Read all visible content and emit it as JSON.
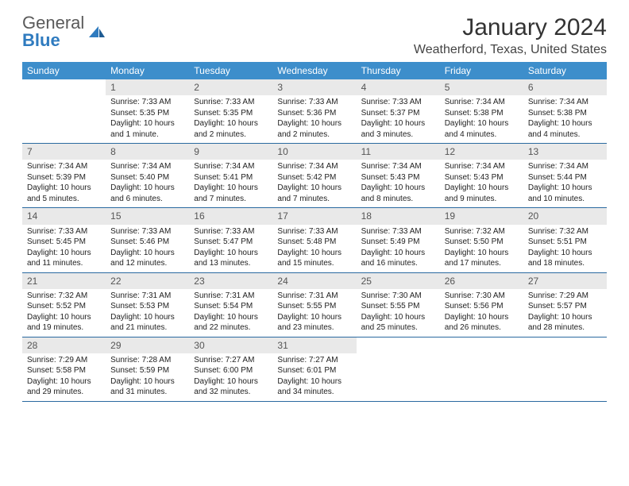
{
  "brand": {
    "line1": "General",
    "line2": "Blue"
  },
  "header": {
    "month_title": "January 2024",
    "location": "Weatherford, Texas, United States"
  },
  "colors": {
    "header_bg": "#3d8ecb",
    "header_text": "#ffffff",
    "daynum_bg": "#e9e9e9",
    "rule": "#2a6aa0",
    "brand_gray": "#5a5a5a",
    "brand_blue": "#2f7bbf",
    "page_bg": "#ffffff",
    "body_text": "#222222"
  },
  "fonts": {
    "month_title_pt": 30,
    "location_pt": 16,
    "weekday_pt": 12,
    "daynum_pt": 12,
    "body_pt": 10
  },
  "weekdays": [
    "Sunday",
    "Monday",
    "Tuesday",
    "Wednesday",
    "Thursday",
    "Friday",
    "Saturday"
  ],
  "weeks": [
    [
      null,
      {
        "n": "1",
        "sr": "Sunrise: 7:33 AM",
        "ss": "Sunset: 5:35 PM",
        "d1": "Daylight: 10 hours",
        "d2": "and 1 minute."
      },
      {
        "n": "2",
        "sr": "Sunrise: 7:33 AM",
        "ss": "Sunset: 5:35 PM",
        "d1": "Daylight: 10 hours",
        "d2": "and 2 minutes."
      },
      {
        "n": "3",
        "sr": "Sunrise: 7:33 AM",
        "ss": "Sunset: 5:36 PM",
        "d1": "Daylight: 10 hours",
        "d2": "and 2 minutes."
      },
      {
        "n": "4",
        "sr": "Sunrise: 7:33 AM",
        "ss": "Sunset: 5:37 PM",
        "d1": "Daylight: 10 hours",
        "d2": "and 3 minutes."
      },
      {
        "n": "5",
        "sr": "Sunrise: 7:34 AM",
        "ss": "Sunset: 5:38 PM",
        "d1": "Daylight: 10 hours",
        "d2": "and 4 minutes."
      },
      {
        "n": "6",
        "sr": "Sunrise: 7:34 AM",
        "ss": "Sunset: 5:38 PM",
        "d1": "Daylight: 10 hours",
        "d2": "and 4 minutes."
      }
    ],
    [
      {
        "n": "7",
        "sr": "Sunrise: 7:34 AM",
        "ss": "Sunset: 5:39 PM",
        "d1": "Daylight: 10 hours",
        "d2": "and 5 minutes."
      },
      {
        "n": "8",
        "sr": "Sunrise: 7:34 AM",
        "ss": "Sunset: 5:40 PM",
        "d1": "Daylight: 10 hours",
        "d2": "and 6 minutes."
      },
      {
        "n": "9",
        "sr": "Sunrise: 7:34 AM",
        "ss": "Sunset: 5:41 PM",
        "d1": "Daylight: 10 hours",
        "d2": "and 7 minutes."
      },
      {
        "n": "10",
        "sr": "Sunrise: 7:34 AM",
        "ss": "Sunset: 5:42 PM",
        "d1": "Daylight: 10 hours",
        "d2": "and 7 minutes."
      },
      {
        "n": "11",
        "sr": "Sunrise: 7:34 AM",
        "ss": "Sunset: 5:43 PM",
        "d1": "Daylight: 10 hours",
        "d2": "and 8 minutes."
      },
      {
        "n": "12",
        "sr": "Sunrise: 7:34 AM",
        "ss": "Sunset: 5:43 PM",
        "d1": "Daylight: 10 hours",
        "d2": "and 9 minutes."
      },
      {
        "n": "13",
        "sr": "Sunrise: 7:34 AM",
        "ss": "Sunset: 5:44 PM",
        "d1": "Daylight: 10 hours",
        "d2": "and 10 minutes."
      }
    ],
    [
      {
        "n": "14",
        "sr": "Sunrise: 7:33 AM",
        "ss": "Sunset: 5:45 PM",
        "d1": "Daylight: 10 hours",
        "d2": "and 11 minutes."
      },
      {
        "n": "15",
        "sr": "Sunrise: 7:33 AM",
        "ss": "Sunset: 5:46 PM",
        "d1": "Daylight: 10 hours",
        "d2": "and 12 minutes."
      },
      {
        "n": "16",
        "sr": "Sunrise: 7:33 AM",
        "ss": "Sunset: 5:47 PM",
        "d1": "Daylight: 10 hours",
        "d2": "and 13 minutes."
      },
      {
        "n": "17",
        "sr": "Sunrise: 7:33 AM",
        "ss": "Sunset: 5:48 PM",
        "d1": "Daylight: 10 hours",
        "d2": "and 15 minutes."
      },
      {
        "n": "18",
        "sr": "Sunrise: 7:33 AM",
        "ss": "Sunset: 5:49 PM",
        "d1": "Daylight: 10 hours",
        "d2": "and 16 minutes."
      },
      {
        "n": "19",
        "sr": "Sunrise: 7:32 AM",
        "ss": "Sunset: 5:50 PM",
        "d1": "Daylight: 10 hours",
        "d2": "and 17 minutes."
      },
      {
        "n": "20",
        "sr": "Sunrise: 7:32 AM",
        "ss": "Sunset: 5:51 PM",
        "d1": "Daylight: 10 hours",
        "d2": "and 18 minutes."
      }
    ],
    [
      {
        "n": "21",
        "sr": "Sunrise: 7:32 AM",
        "ss": "Sunset: 5:52 PM",
        "d1": "Daylight: 10 hours",
        "d2": "and 19 minutes."
      },
      {
        "n": "22",
        "sr": "Sunrise: 7:31 AM",
        "ss": "Sunset: 5:53 PM",
        "d1": "Daylight: 10 hours",
        "d2": "and 21 minutes."
      },
      {
        "n": "23",
        "sr": "Sunrise: 7:31 AM",
        "ss": "Sunset: 5:54 PM",
        "d1": "Daylight: 10 hours",
        "d2": "and 22 minutes."
      },
      {
        "n": "24",
        "sr": "Sunrise: 7:31 AM",
        "ss": "Sunset: 5:55 PM",
        "d1": "Daylight: 10 hours",
        "d2": "and 23 minutes."
      },
      {
        "n": "25",
        "sr": "Sunrise: 7:30 AM",
        "ss": "Sunset: 5:55 PM",
        "d1": "Daylight: 10 hours",
        "d2": "and 25 minutes."
      },
      {
        "n": "26",
        "sr": "Sunrise: 7:30 AM",
        "ss": "Sunset: 5:56 PM",
        "d1": "Daylight: 10 hours",
        "d2": "and 26 minutes."
      },
      {
        "n": "27",
        "sr": "Sunrise: 7:29 AM",
        "ss": "Sunset: 5:57 PM",
        "d1": "Daylight: 10 hours",
        "d2": "and 28 minutes."
      }
    ],
    [
      {
        "n": "28",
        "sr": "Sunrise: 7:29 AM",
        "ss": "Sunset: 5:58 PM",
        "d1": "Daylight: 10 hours",
        "d2": "and 29 minutes."
      },
      {
        "n": "29",
        "sr": "Sunrise: 7:28 AM",
        "ss": "Sunset: 5:59 PM",
        "d1": "Daylight: 10 hours",
        "d2": "and 31 minutes."
      },
      {
        "n": "30",
        "sr": "Sunrise: 7:27 AM",
        "ss": "Sunset: 6:00 PM",
        "d1": "Daylight: 10 hours",
        "d2": "and 32 minutes."
      },
      {
        "n": "31",
        "sr": "Sunrise: 7:27 AM",
        "ss": "Sunset: 6:01 PM",
        "d1": "Daylight: 10 hours",
        "d2": "and 34 minutes."
      },
      null,
      null,
      null
    ]
  ]
}
